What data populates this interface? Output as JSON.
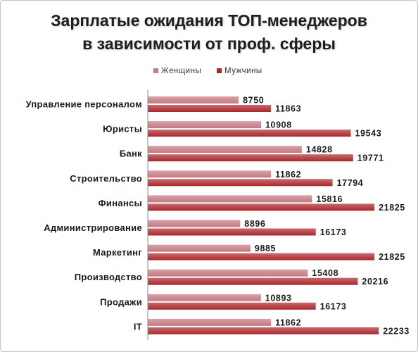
{
  "chart_data": {
    "type": "bar",
    "orientation": "horizontal",
    "title": [
      "Зарплатые ожидания ТОП-менеджеров",
      "в зависимости от проф. сферы"
    ],
    "categories": [
      "Управление персоналом",
      "Юристы",
      "Банк",
      "Строительство",
      "Финансы",
      "Администрирование",
      "Маркетинг",
      "Производство",
      "Продажи",
      "IT"
    ],
    "series": [
      {
        "name": "Женщины",
        "color": "#c4787f",
        "values": [
          8750,
          10908,
          14828,
          11862,
          15816,
          8896,
          9885,
          15408,
          10893,
          11862
        ]
      },
      {
        "name": "Мужчины",
        "color": "#a9272b",
        "values": [
          11863,
          19543,
          19771,
          17794,
          21825,
          16173,
          21825,
          20216,
          16173,
          22233
        ]
      }
    ],
    "xlim": [
      0,
      25000
    ],
    "grid": false,
    "legend": "top",
    "data_labels": true
  }
}
